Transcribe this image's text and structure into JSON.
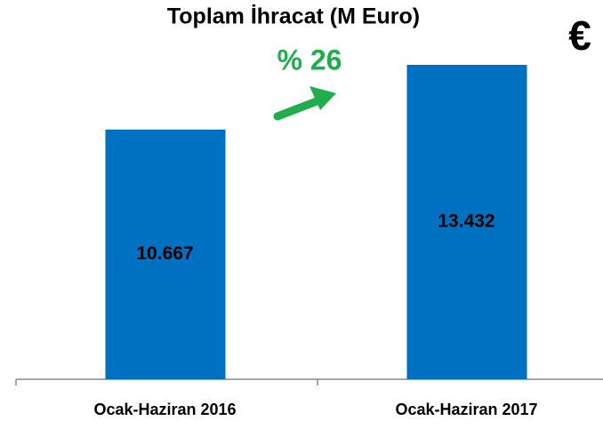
{
  "chart_data": {
    "type": "bar",
    "title": "Toplam İhracat (M Euro)",
    "annotations": [
      "% 26",
      "€"
    ],
    "categories": [
      "Ocak-Haziran 2016",
      "Ocak-Haziran 2017"
    ],
    "values": [
      10667,
      13432
    ],
    "value_labels": [
      "10.667",
      "13.432"
    ],
    "color": "#0070c0"
  }
}
